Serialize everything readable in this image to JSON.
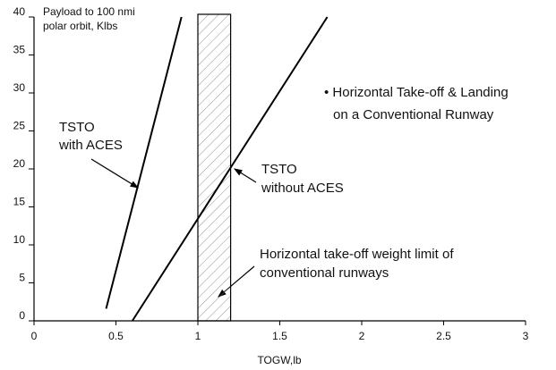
{
  "chart_data": {
    "type": "line",
    "y_label": [
      "Payload to 100 nmi",
      "polar orbit, Klbs"
    ],
    "x_label": "TOGW,lb",
    "xlim": [
      0,
      3
    ],
    "xticks": [
      0,
      0.5,
      1,
      1.5,
      2,
      2.5,
      3
    ],
    "ylim": [
      0,
      40
    ],
    "yticks": [
      0,
      5,
      10,
      15,
      20,
      25,
      30,
      35,
      40
    ],
    "series": [
      {
        "label": [
          "TSTO",
          "with ACES"
        ],
        "color": "#000000",
        "x": [
          0.44,
          0.9
        ],
        "values": [
          1.6,
          40
        ]
      },
      {
        "label": [
          "TSTO",
          "without ACES"
        ],
        "color": "#000000",
        "x": [
          0.6,
          1.79
        ],
        "values": [
          0,
          40
        ]
      }
    ],
    "band": {
      "label": [
        "Horizontal take-off weight limit of",
        "conventional runways"
      ],
      "x": [
        1,
        1.2
      ]
    },
    "note": [
      "• Horizontal Take-off & Landing",
      "on a Conventional Runway"
    ]
  }
}
